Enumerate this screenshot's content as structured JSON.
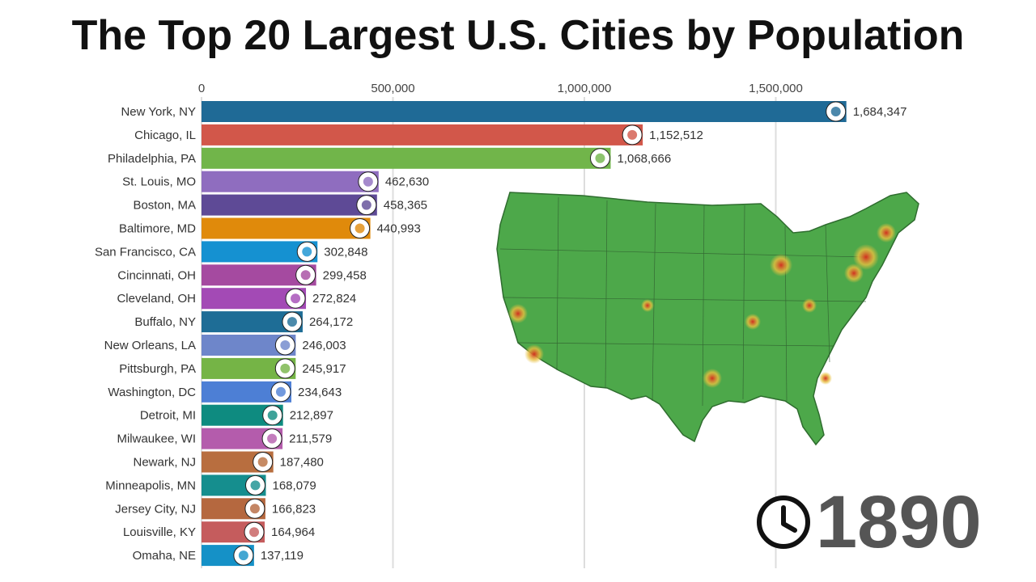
{
  "title": "The Top 20 Largest U.S. Cities by Population",
  "year": "1890",
  "icons": {
    "clock": "clock-icon",
    "map": "us-population-density-map"
  },
  "chart_data": {
    "type": "bar",
    "orientation": "horizontal",
    "title": "The Top 20 Largest U.S. Cities by Population",
    "xlim": [
      0,
      1800000
    ],
    "xticks": [
      0,
      500000,
      1000000,
      1500000
    ],
    "xtick_labels": [
      "0",
      "500,000",
      "1,000,000",
      "1,500,000"
    ],
    "grid": true,
    "categories": [
      "New York, NY",
      "Chicago, IL",
      "Philadelphia, PA",
      "St. Louis, MO",
      "Boston, MA",
      "Baltimore, MD",
      "San Francisco, CA",
      "Cincinnati, OH",
      "Cleveland, OH",
      "Buffalo, NY",
      "New Orleans, LA",
      "Pittsburgh, PA",
      "Washington, DC",
      "Detroit, MI",
      "Milwaukee, WI",
      "Newark, NJ",
      "Minneapolis, MN",
      "Jersey City, NJ",
      "Louisville, KY",
      "Omaha, NE"
    ],
    "values": [
      1684347,
      1152512,
      1068666,
      462630,
      458365,
      440993,
      302848,
      299458,
      272824,
      264172,
      246003,
      245917,
      234643,
      212897,
      211579,
      187480,
      168079,
      166823,
      164964,
      137119
    ],
    "value_labels": [
      "1,684,347",
      "1,152,512",
      "1,068,666",
      "462,630",
      "458,365",
      "440,993",
      "302,848",
      "299,458",
      "272,824",
      "264,172",
      "246,003",
      "245,917",
      "234,643",
      "212,897",
      "211,579",
      "187,480",
      "168,079",
      "166,823",
      "164,964",
      "137,119"
    ],
    "colors": [
      "#1f6a96",
      "#d2574a",
      "#71b54a",
      "#8f6dbf",
      "#5e4a96",
      "#e08a0b",
      "#1591d1",
      "#a54aa0",
      "#a34ab5",
      "#1e6d96",
      "#6e86ca",
      "#75b446",
      "#4d7fd5",
      "#0e8b80",
      "#b45cac",
      "#b86e3f",
      "#158e8e",
      "#b5683f",
      "#c55c5d",
      "#1591c7"
    ]
  }
}
